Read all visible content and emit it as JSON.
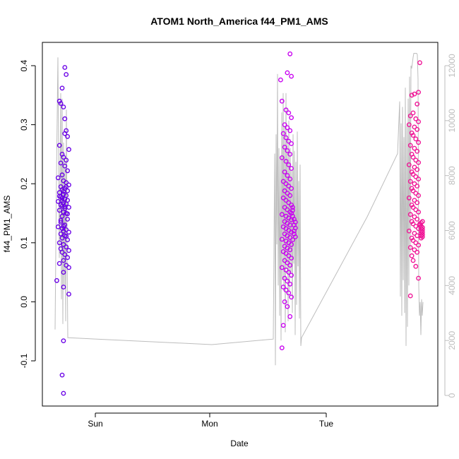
{
  "chart_data": {
    "type": "scatter",
    "title": "ATOM1 North_America f44_PM1_AMS",
    "xlabel": "Date",
    "ylabel": "f44_PM1_AMS",
    "x_ticks": [
      "Sun",
      "Mon",
      "Tue"
    ],
    "y_ticks": [
      "-0.1",
      "0.0",
      "0.1",
      "0.2",
      "0.3",
      "0.4"
    ],
    "y2_ticks": [
      "0",
      "2000",
      "4000",
      "6000",
      "8000",
      "10000",
      "12000"
    ],
    "ylim": [
      -0.16,
      0.42
    ],
    "y2lim": [
      0,
      12000
    ],
    "grid": false,
    "colors": {
      "series_start": "#5a00e0",
      "series_middle": "#c800f0",
      "series_end": "#f01496",
      "line": "#bdbdbd",
      "secondary_axis": "#bdbdbd"
    },
    "clusters": [
      {
        "color": "#6a00e6",
        "points": [
          [
            0.397,
            2
          ],
          [
            0.385,
            3
          ],
          [
            0.362,
            0
          ],
          [
            0.34,
            -2
          ],
          [
            0.336,
            -1
          ],
          [
            0.33,
            1
          ],
          [
            0.31,
            2
          ],
          [
            0.29,
            3
          ],
          [
            0.285,
            2
          ],
          [
            0.28,
            4
          ],
          [
            0.265,
            -2
          ],
          [
            0.258,
            5
          ],
          [
            0.25,
            0
          ],
          [
            0.245,
            1
          ],
          [
            0.24,
            3
          ],
          [
            0.235,
            -1
          ],
          [
            0.23,
            2
          ],
          [
            0.222,
            4
          ],
          [
            0.215,
            0
          ],
          [
            0.21,
            -3
          ],
          [
            0.205,
            1
          ],
          [
            0.202,
            3
          ],
          [
            0.198,
            5
          ],
          [
            0.195,
            -1
          ],
          [
            0.192,
            2
          ],
          [
            0.19,
            0
          ],
          [
            0.188,
            4
          ],
          [
            0.185,
            -2
          ],
          [
            0.182,
            1
          ],
          [
            0.18,
            3
          ],
          [
            0.178,
            -1
          ],
          [
            0.176,
            0
          ],
          [
            0.174,
            2
          ],
          [
            0.172,
            4
          ],
          [
            0.17,
            -3
          ],
          [
            0.168,
            1
          ],
          [
            0.166,
            3
          ],
          [
            0.164,
            -1
          ],
          [
            0.162,
            0
          ],
          [
            0.16,
            5
          ],
          [
            0.158,
            2
          ],
          [
            0.155,
            -2
          ],
          [
            0.152,
            1
          ],
          [
            0.15,
            3
          ],
          [
            0.145,
            0
          ],
          [
            0.14,
            4
          ],
          [
            0.135,
            -1
          ],
          [
            0.13,
            2
          ],
          [
            0.127,
            -3
          ],
          [
            0.124,
            0
          ],
          [
            0.122,
            3
          ],
          [
            0.12,
            1
          ],
          [
            0.118,
            5
          ],
          [
            0.115,
            -1
          ],
          [
            0.112,
            2
          ],
          [
            0.108,
            0
          ],
          [
            0.105,
            4
          ],
          [
            0.1,
            -2
          ],
          [
            0.097,
            1
          ],
          [
            0.093,
            3
          ],
          [
            0.09,
            -1
          ],
          [
            0.087,
            5
          ],
          [
            0.084,
            0
          ],
          [
            0.08,
            2
          ],
          [
            0.075,
            4
          ],
          [
            0.07,
            1
          ],
          [
            0.065,
            -2
          ],
          [
            0.062,
            3
          ],
          [
            0.058,
            5
          ],
          [
            0.05,
            1
          ],
          [
            0.036,
            -4
          ],
          [
            0.025,
            1
          ],
          [
            0.013,
            5
          ],
          [
            -0.066,
            1
          ],
          [
            -0.124,
            0
          ],
          [
            -0.155,
            1
          ],
          [
            0.195,
            3
          ],
          [
            0.187,
            1
          ],
          [
            0.179,
            -2
          ],
          [
            0.171,
            0
          ],
          [
            0.161,
            2
          ],
          [
            0.149,
            4
          ],
          [
            0.138,
            -1
          ],
          [
            0.128,
            1
          ],
          [
            0.111,
            3
          ]
        ]
      },
      {
        "color": "#c800f0",
        "points": [
          [
            0.42,
            3
          ],
          [
            0.388,
            1
          ],
          [
            0.382,
            4
          ],
          [
            0.376,
            -4
          ],
          [
            0.34,
            -3
          ],
          [
            0.325,
            0
          ],
          [
            0.32,
            2
          ],
          [
            0.312,
            4
          ],
          [
            0.3,
            -1
          ],
          [
            0.295,
            1
          ],
          [
            0.29,
            3
          ],
          [
            0.285,
            -2
          ],
          [
            0.278,
            0
          ],
          [
            0.272,
            2
          ],
          [
            0.268,
            4
          ],
          [
            0.262,
            -1
          ],
          [
            0.256,
            1
          ],
          [
            0.25,
            3
          ],
          [
            0.244,
            -3
          ],
          [
            0.238,
            0
          ],
          [
            0.232,
            2
          ],
          [
            0.226,
            4
          ],
          [
            0.22,
            -1
          ],
          [
            0.214,
            1
          ],
          [
            0.208,
            3
          ],
          [
            0.204,
            -2
          ],
          [
            0.2,
            0
          ],
          [
            0.196,
            2
          ],
          [
            0.192,
            4
          ],
          [
            0.188,
            -1
          ],
          [
            0.184,
            1
          ],
          [
            0.18,
            3
          ],
          [
            0.176,
            -2
          ],
          [
            0.172,
            0
          ],
          [
            0.168,
            2
          ],
          [
            0.164,
            4
          ],
          [
            0.16,
            -1
          ],
          [
            0.156,
            1
          ],
          [
            0.152,
            3
          ],
          [
            0.148,
            -3
          ],
          [
            0.145,
            0
          ],
          [
            0.142,
            2
          ],
          [
            0.139,
            4
          ],
          [
            0.136,
            -1
          ],
          [
            0.133,
            1
          ],
          [
            0.13,
            3
          ],
          [
            0.127,
            -2
          ],
          [
            0.124,
            0
          ],
          [
            0.121,
            2
          ],
          [
            0.118,
            4
          ],
          [
            0.115,
            -1
          ],
          [
            0.112,
            1
          ],
          [
            0.109,
            3
          ],
          [
            0.106,
            -3
          ],
          [
            0.103,
            0
          ],
          [
            0.1,
            2
          ],
          [
            0.097,
            4
          ],
          [
            0.094,
            -1
          ],
          [
            0.091,
            1
          ],
          [
            0.088,
            3
          ],
          [
            0.085,
            -2
          ],
          [
            0.082,
            0
          ],
          [
            0.078,
            2
          ],
          [
            0.074,
            4
          ],
          [
            0.07,
            -1
          ],
          [
            0.066,
            1
          ],
          [
            0.062,
            3
          ],
          [
            0.058,
            -3
          ],
          [
            0.054,
            0
          ],
          [
            0.05,
            2
          ],
          [
            0.045,
            4
          ],
          [
            0.04,
            -1
          ],
          [
            0.035,
            1
          ],
          [
            0.03,
            3
          ],
          [
            0.025,
            -2
          ],
          [
            0.02,
            0
          ],
          [
            0.015,
            2
          ],
          [
            0.008,
            4
          ],
          [
            0.0,
            -1
          ],
          [
            -0.008,
            1
          ],
          [
            -0.025,
            3
          ],
          [
            -0.04,
            -2
          ],
          [
            -0.078,
            -3
          ],
          [
            0.145,
            5
          ],
          [
            0.14,
            6
          ],
          [
            0.135,
            7
          ],
          [
            0.13,
            6
          ],
          [
            0.125,
            7
          ],
          [
            0.12,
            6
          ],
          [
            0.155,
            5
          ],
          [
            0.15,
            4
          ],
          [
            0.16,
            5
          ],
          [
            0.115,
            6
          ],
          [
            0.11,
            7
          ],
          [
            0.105,
            5
          ]
        ]
      },
      {
        "color": "#f01496",
        "points": [
          [
            0.405,
            5
          ],
          [
            0.355,
            4
          ],
          [
            0.352,
            1
          ],
          [
            0.35,
            -1
          ],
          [
            0.335,
            3
          ],
          [
            0.32,
            0
          ],
          [
            0.315,
            -2
          ],
          [
            0.31,
            2
          ],
          [
            0.305,
            4
          ],
          [
            0.3,
            -3
          ],
          [
            0.296,
            1
          ],
          [
            0.292,
            3
          ],
          [
            0.286,
            -1
          ],
          [
            0.282,
            0
          ],
          [
            0.276,
            2
          ],
          [
            0.27,
            4
          ],
          [
            0.265,
            -2
          ],
          [
            0.26,
            1
          ],
          [
            0.255,
            3
          ],
          [
            0.25,
            -1
          ],
          [
            0.245,
            0
          ],
          [
            0.24,
            2
          ],
          [
            0.236,
            4
          ],
          [
            0.232,
            -3
          ],
          [
            0.228,
            1
          ],
          [
            0.224,
            3
          ],
          [
            0.22,
            -1
          ],
          [
            0.216,
            0
          ],
          [
            0.212,
            2
          ],
          [
            0.208,
            4
          ],
          [
            0.204,
            -2
          ],
          [
            0.2,
            1
          ],
          [
            0.196,
            3
          ],
          [
            0.192,
            -1
          ],
          [
            0.188,
            0
          ],
          [
            0.184,
            2
          ],
          [
            0.18,
            4
          ],
          [
            0.176,
            -3
          ],
          [
            0.172,
            1
          ],
          [
            0.168,
            3
          ],
          [
            0.164,
            -1
          ],
          [
            0.16,
            0
          ],
          [
            0.156,
            2
          ],
          [
            0.152,
            4
          ],
          [
            0.148,
            -2
          ],
          [
            0.144,
            1
          ],
          [
            0.14,
            3
          ],
          [
            0.136,
            -1
          ],
          [
            0.132,
            0
          ],
          [
            0.128,
            2
          ],
          [
            0.124,
            4
          ],
          [
            0.12,
            -3
          ],
          [
            0.116,
            1
          ],
          [
            0.112,
            3
          ],
          [
            0.108,
            -1
          ],
          [
            0.104,
            0
          ],
          [
            0.1,
            2
          ],
          [
            0.096,
            4
          ],
          [
            0.092,
            -2
          ],
          [
            0.088,
            1
          ],
          [
            0.084,
            3
          ],
          [
            0.078,
            -1
          ],
          [
            0.07,
            0
          ],
          [
            0.06,
            2
          ],
          [
            0.04,
            4
          ],
          [
            0.01,
            -2
          ],
          [
            0.13,
            5
          ],
          [
            0.128,
            6
          ],
          [
            0.126,
            7
          ],
          [
            0.124,
            6
          ],
          [
            0.122,
            7
          ],
          [
            0.12,
            6
          ],
          [
            0.118,
            7
          ],
          [
            0.116,
            6
          ],
          [
            0.114,
            7
          ],
          [
            0.112,
            6
          ],
          [
            0.11,
            7
          ],
          [
            0.108,
            6
          ],
          [
            0.132,
            5
          ],
          [
            0.134,
            6
          ],
          [
            0.136,
            7
          ]
        ]
      }
    ],
    "secondary_line_notes_removed": true,
    "secondary_line_x": [
      0,
      1,
      2,
      3,
      4,
      5,
      6,
      7,
      8,
      9,
      10,
      11,
      12,
      13,
      14,
      15,
      16,
      17,
      18,
      19,
      20,
      21,
      22,
      23,
      24,
      25,
      26,
      27,
      28,
      29,
      30,
      31,
      32,
      33,
      34,
      35,
      36,
      37,
      38,
      39,
      40,
      41,
      42,
      43,
      44,
      45,
      46,
      47,
      48,
      49,
      50,
      51,
      52
    ],
    "secondary_line_y": [
      2200,
      12300,
      4500,
      11000,
      3000,
      10700,
      2500,
      9000,
      2100,
      2150,
      2200,
      2150,
      1800,
      2050,
      2300,
      8500,
      11700,
      3500,
      8500,
      3000,
      8700,
      2100,
      2100,
      11000,
      4200,
      11000,
      4600,
      2500,
      11000,
      2500,
      10000,
      4000,
      9800,
      4500,
      9500,
      4800,
      12000,
      3800,
      10500,
      1600,
      9000,
      11800,
      12400,
      12300,
      12500,
      12500,
      12400,
      1900,
      2500,
      2000,
      3500,
      3000,
      3400
    ]
  }
}
